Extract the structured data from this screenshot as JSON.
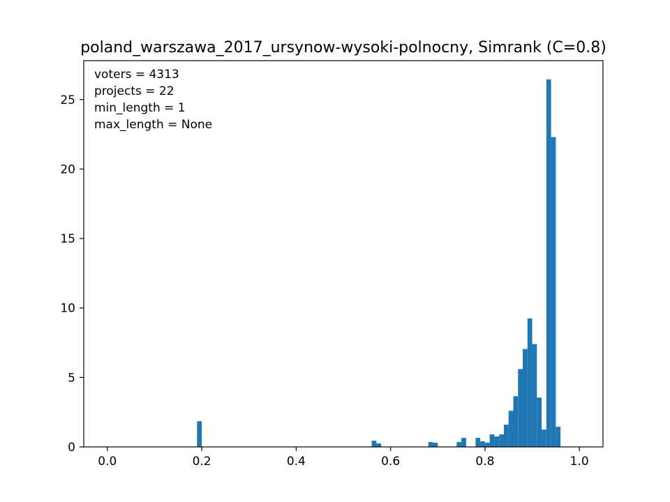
{
  "chart_data": {
    "type": "bar",
    "title": "poland_warszawa_2017_ursynow-wysoki-polnocny, Simrank (C=0.8)",
    "xlabel": "",
    "ylabel": "",
    "xlim": [
      -0.05,
      1.05
    ],
    "ylim": [
      0,
      27.8
    ],
    "grid": false,
    "color": "#1f77b4",
    "bin_width": 0.01,
    "xticks": [
      0.0,
      0.2,
      0.4,
      0.6,
      0.8,
      1.0
    ],
    "xtick_labels": [
      "0.0",
      "0.2",
      "0.4",
      "0.6",
      "0.8",
      "1.0"
    ],
    "yticks": [
      0,
      5,
      10,
      15,
      20,
      25
    ],
    "ytick_labels": [
      "0",
      "5",
      "10",
      "15",
      "20",
      "25"
    ],
    "bins": [
      {
        "x": 0.19,
        "value": 1.85
      },
      {
        "x": 0.56,
        "value": 0.45
      },
      {
        "x": 0.57,
        "value": 0.25
      },
      {
        "x": 0.68,
        "value": 0.35
      },
      {
        "x": 0.69,
        "value": 0.3
      },
      {
        "x": 0.74,
        "value": 0.35
      },
      {
        "x": 0.75,
        "value": 0.65
      },
      {
        "x": 0.78,
        "value": 0.65
      },
      {
        "x": 0.79,
        "value": 0.4
      },
      {
        "x": 0.8,
        "value": 0.3
      },
      {
        "x": 0.81,
        "value": 0.9
      },
      {
        "x": 0.82,
        "value": 0.75
      },
      {
        "x": 0.83,
        "value": 0.9
      },
      {
        "x": 0.84,
        "value": 1.6
      },
      {
        "x": 0.85,
        "value": 2.6
      },
      {
        "x": 0.86,
        "value": 3.65
      },
      {
        "x": 0.87,
        "value": 5.6
      },
      {
        "x": 0.88,
        "value": 7.05
      },
      {
        "x": 0.89,
        "value": 9.25
      },
      {
        "x": 0.9,
        "value": 7.4
      },
      {
        "x": 0.91,
        "value": 3.55
      },
      {
        "x": 0.92,
        "value": 1.25
      },
      {
        "x": 0.93,
        "value": 26.45
      },
      {
        "x": 0.94,
        "value": 22.3
      },
      {
        "x": 0.95,
        "value": 1.45
      }
    ],
    "annotations": [
      "voters = 4313",
      "projects = 22",
      "min_length = 1",
      "max_length = None"
    ]
  }
}
